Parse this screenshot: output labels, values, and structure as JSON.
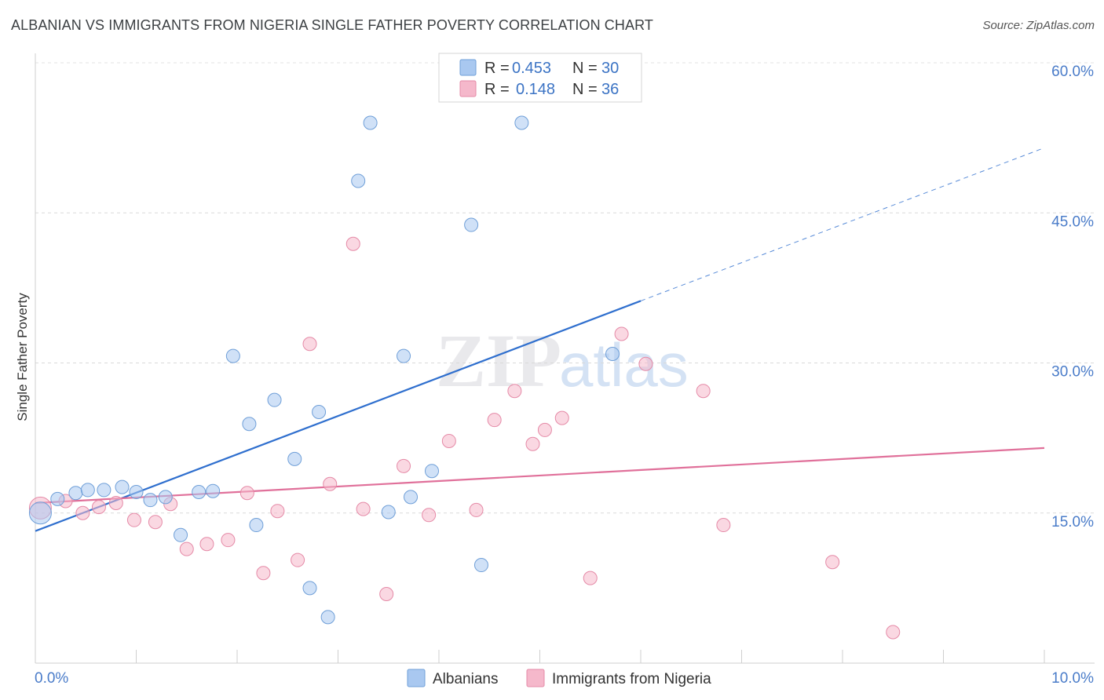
{
  "header": {
    "title": "ALBANIAN VS IMMIGRANTS FROM NIGERIA SINGLE FATHER POVERTY CORRELATION CHART",
    "source": "Source: ZipAtlas.com"
  },
  "watermark": {
    "zip": "ZIP",
    "atlas": "atlas"
  },
  "legend": {
    "rows": [
      {
        "r_label": "R =",
        "r_value": "0.453",
        "n_label": "N =",
        "n_value": "30",
        "color": "#a9c8f0"
      },
      {
        "r_label": "R =",
        "r_value": "0.148",
        "n_label": "N =",
        "n_value": "36",
        "color": "#f5b8cb"
      }
    ]
  },
  "chart_data": {
    "type": "scatter",
    "title": "ALBANIAN VS IMMIGRANTS FROM NIGERIA SINGLE FATHER POVERTY CORRELATION CHART",
    "xlabel": "",
    "ylabel": "Single Father Poverty",
    "xlim": [
      0,
      10
    ],
    "ylim": [
      0,
      60
    ],
    "x_tick_labels": [
      "0.0%",
      "10.0%"
    ],
    "y_ticks": [
      15,
      30,
      45,
      60
    ],
    "y_tick_labels": [
      "15.0%",
      "30.0%",
      "45.0%",
      "60.0%"
    ],
    "grid": true,
    "legend_position": "top-center",
    "series": [
      {
        "name": "Albanians",
        "color": "#a9c8f0",
        "stroke": "#6f9fd8",
        "line_color": "#2f6fce",
        "trend": {
          "x0": 0.0,
          "y0": 13.2,
          "x1": 6.0,
          "y1": 36.2,
          "dash_to_x": 10.0,
          "dash_to_y": 51.5
        },
        "points": [
          [
            0.05,
            15.0
          ],
          [
            0.22,
            16.4
          ],
          [
            0.4,
            17.0
          ],
          [
            0.52,
            17.3
          ],
          [
            0.68,
            17.3
          ],
          [
            0.86,
            17.6
          ],
          [
            1.0,
            17.1
          ],
          [
            1.14,
            16.3
          ],
          [
            1.29,
            16.6
          ],
          [
            1.44,
            12.8
          ],
          [
            1.62,
            17.1
          ],
          [
            1.76,
            17.2
          ],
          [
            1.96,
            30.7
          ],
          [
            2.12,
            23.9
          ],
          [
            2.19,
            13.8
          ],
          [
            2.37,
            26.3
          ],
          [
            2.57,
            20.4
          ],
          [
            2.72,
            7.5
          ],
          [
            2.81,
            25.1
          ],
          [
            2.9,
            4.6
          ],
          [
            3.2,
            48.2
          ],
          [
            3.32,
            54.0
          ],
          [
            3.5,
            15.1
          ],
          [
            3.65,
            30.7
          ],
          [
            3.72,
            16.6
          ],
          [
            3.93,
            19.2
          ],
          [
            4.32,
            43.8
          ],
          [
            4.42,
            9.8
          ],
          [
            4.82,
            54.0
          ],
          [
            5.72,
            30.9
          ]
        ]
      },
      {
        "name": "Immigrants from Nigeria",
        "color": "#f5b8cb",
        "stroke": "#e58aa7",
        "line_color": "#e0709a",
        "trend": {
          "x0": 0.0,
          "y0": 16.0,
          "x1": 10.0,
          "y1": 21.5
        },
        "points": [
          [
            0.05,
            15.5
          ],
          [
            0.3,
            16.2
          ],
          [
            0.47,
            15.0
          ],
          [
            0.63,
            15.6
          ],
          [
            0.8,
            16.0
          ],
          [
            0.98,
            14.3
          ],
          [
            1.19,
            14.1
          ],
          [
            1.34,
            15.9
          ],
          [
            1.5,
            11.4
          ],
          [
            1.7,
            11.9
          ],
          [
            1.91,
            12.3
          ],
          [
            2.1,
            17.0
          ],
          [
            2.26,
            9.0
          ],
          [
            2.4,
            15.2
          ],
          [
            2.6,
            10.3
          ],
          [
            2.72,
            31.9
          ],
          [
            2.92,
            17.9
          ],
          [
            3.15,
            41.9
          ],
          [
            3.25,
            15.4
          ],
          [
            3.48,
            6.9
          ],
          [
            3.65,
            19.7
          ],
          [
            3.9,
            14.8
          ],
          [
            4.1,
            22.2
          ],
          [
            4.37,
            15.3
          ],
          [
            4.55,
            24.3
          ],
          [
            4.75,
            27.2
          ],
          [
            4.93,
            21.9
          ],
          [
            5.05,
            23.3
          ],
          [
            5.22,
            24.5
          ],
          [
            5.5,
            8.5
          ],
          [
            5.81,
            32.9
          ],
          [
            6.05,
            29.9
          ],
          [
            6.62,
            27.2
          ],
          [
            6.82,
            13.8
          ],
          [
            7.9,
            10.1
          ],
          [
            8.5,
            3.1
          ]
        ]
      }
    ]
  }
}
